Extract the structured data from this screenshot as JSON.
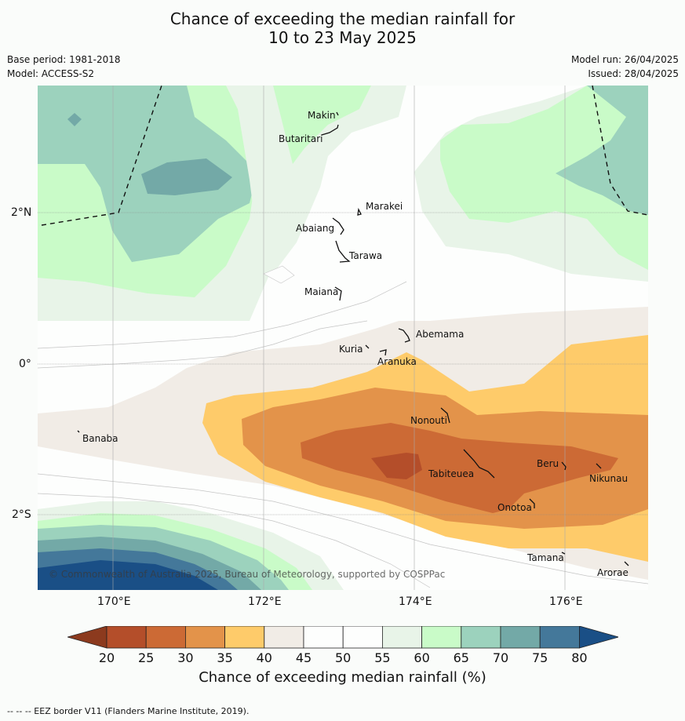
{
  "header": {
    "title_line1": "Chance of exceeding the median rainfall for",
    "title_line2": "10 to 23 May 2025",
    "base_period": "Base period: 1981-2018",
    "model": "Model: ACCESS-S2",
    "model_run": "Model run: 26/04/2025",
    "issued": "Issued: 28/04/2025"
  },
  "map": {
    "lat_labels": [
      "2°N",
      "0°",
      "2°S"
    ],
    "lon_labels": [
      "170°E",
      "172°E",
      "174°E",
      "176°E"
    ],
    "places": [
      "Makin",
      "Butaritari",
      "Marakei",
      "Abaiang",
      "Tarawa",
      "Maiana",
      "Abemama",
      "Kuria",
      "Aranuka",
      "Banaba",
      "Nonouti",
      "Beru",
      "Nikunau",
      "Tabiteuea",
      "Onotoa",
      "Tamana",
      "Arorae"
    ],
    "copyright": "© Commonwealth of Australia 2025, Bureau of Meteorology, supported by COSPPac"
  },
  "colorbar": {
    "ticks": [
      "20",
      "25",
      "30",
      "35",
      "40",
      "45",
      "50",
      "55",
      "60",
      "65",
      "70",
      "75",
      "80"
    ],
    "colors": [
      "#8c3a1e",
      "#b44e2a",
      "#cc6a35",
      "#e3934a",
      "#fecb6a",
      "#f1ece6",
      "#fdfefd",
      "#fdfefd",
      "#e8f4e8",
      "#c9fbc8",
      "#9cd2bd",
      "#73a9a7",
      "#44789a",
      "#1a4f86"
    ],
    "label": "Chance of exceeding median rainfall (%)"
  },
  "footer": {
    "eez_note": "--  --  -- EEZ border V11 (Flanders Marine Institute, 2019)."
  }
}
